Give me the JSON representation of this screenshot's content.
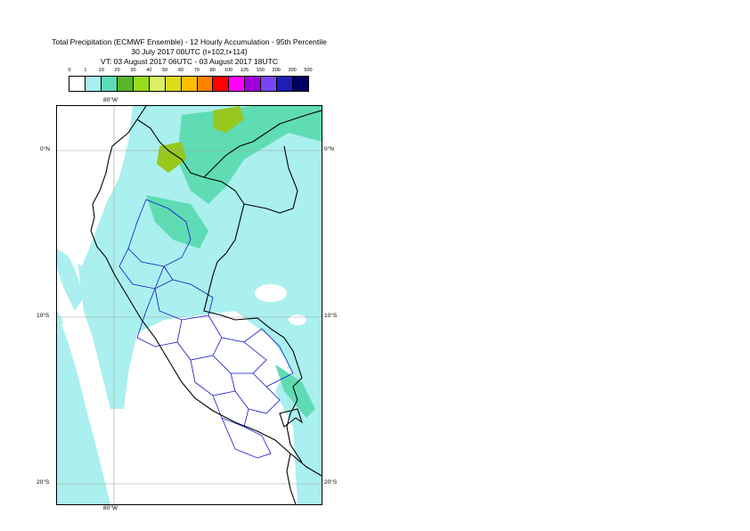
{
  "title": {
    "line1": "Total Precipitation (ECMWF Ensemble) - 12 Hourly Accumulation - 95th Percentile",
    "line2": "30 July 2017 00UTC (t+102,t+114)",
    "line3": "VT: 03 August 2017 06UTC - 03 August 2017 18UTC"
  },
  "legend": {
    "ticks": [
      "0",
      "1",
      "10",
      "20",
      "30",
      "40",
      "50",
      "60",
      "70",
      "80",
      "100",
      "125",
      "150",
      "200",
      "300",
      "500"
    ],
    "colors": [
      "#ffffff",
      "#aaf0ee",
      "#5fdcb4",
      "#5cb428",
      "#96dc1e",
      "#dcf064",
      "#dcdc1e",
      "#ffbe00",
      "#ff8200",
      "#ff0000",
      "#ff00ff",
      "#a000dc",
      "#7846f0",
      "#1e1eb4",
      "#000064"
    ]
  },
  "map": {
    "colors": {
      "light_cyan": "#aaf0ee",
      "medium_green": "#5fdcb4",
      "yellow_green": "#96c81e",
      "border_black": "#000000",
      "border_blue": "#1414c8",
      "grid": "#a0a0a0"
    },
    "graticule_labels": {
      "lon_top": "80°W",
      "lon_bottom": "80°W",
      "lat_left_0": "0°N",
      "lat_right_0": "0°N",
      "lat_left_10": "10°S",
      "lat_right_10": "10°S",
      "lat_left_20": "20°S",
      "lat_right_20": "20°S"
    }
  }
}
